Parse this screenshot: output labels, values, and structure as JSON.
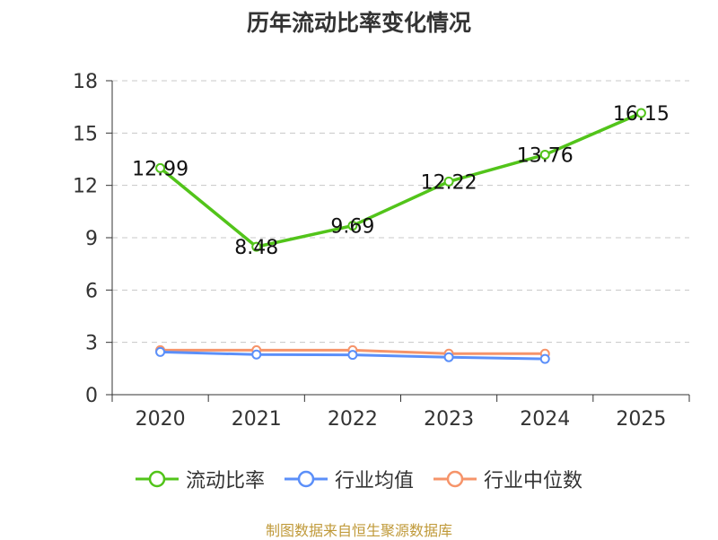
{
  "chart_data": {
    "type": "line",
    "title": "历年流动比率变化情况",
    "categories": [
      "2020",
      "2021",
      "2022",
      "2023",
      "2024",
      "2025"
    ],
    "ylim": [
      0,
      18
    ],
    "yticks": [
      0,
      3,
      6,
      9,
      12,
      15,
      18
    ],
    "grid": true,
    "legend_position": "bottom",
    "series": [
      {
        "name": "流动比率",
        "color": "#52c41a",
        "values": [
          12.99,
          8.48,
          9.69,
          12.22,
          13.76,
          16.15
        ],
        "show_labels": true
      },
      {
        "name": "行业均值",
        "color": "#5b8ff9",
        "values": [
          2.45,
          2.3,
          2.28,
          2.15,
          2.05,
          null
        ],
        "show_labels": false
      },
      {
        "name": "行业中位数",
        "color": "#f6946a",
        "values": [
          2.55,
          2.55,
          2.55,
          2.35,
          2.35,
          null
        ],
        "show_labels": false
      }
    ]
  },
  "source": "制图数据来自恒生聚源数据库"
}
